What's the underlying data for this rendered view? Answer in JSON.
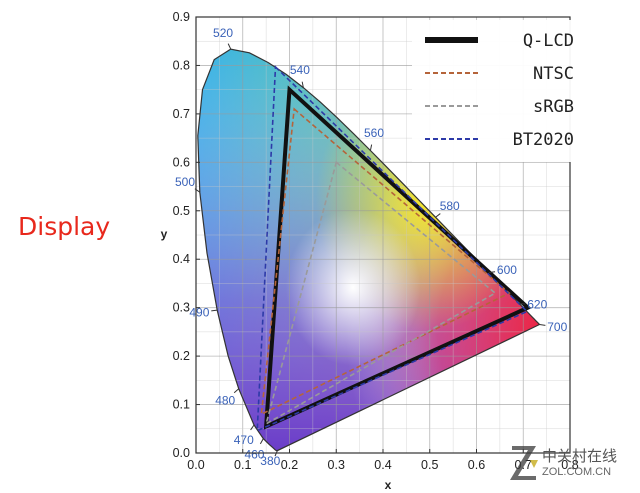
{
  "side_label": "Display",
  "watermark": {
    "cn": "中关村在线",
    "en": "ZOL.COM.CN"
  },
  "chart_data": {
    "type": "line",
    "title": "",
    "xlabel": "x",
    "ylabel": "y",
    "xlim": [
      0,
      0.8
    ],
    "ylim": [
      0,
      0.9
    ],
    "grid": true,
    "legend_position": "top-right",
    "x_ticks": [
      "0.0",
      "0.1",
      "0.2",
      "0.3",
      "0.4",
      "0.5",
      "0.6",
      "0.7",
      "0.8"
    ],
    "y_ticks": [
      "0.0",
      "0.1",
      "0.2",
      "0.3",
      "0.4",
      "0.5",
      "0.6",
      "0.7",
      "0.8",
      "0.9"
    ],
    "spectral_locus": {
      "x": [
        0.1741,
        0.1738,
        0.1733,
        0.1726,
        0.1714,
        0.1689,
        0.1644,
        0.1566,
        0.144,
        0.1241,
        0.0913,
        0.0687,
        0.0454,
        0.0235,
        0.0082,
        0.0039,
        0.0139,
        0.0389,
        0.0743,
        0.1142,
        0.1547,
        0.1929,
        0.2296,
        0.2658,
        0.3016,
        0.3373,
        0.3731,
        0.4087,
        0.4441,
        0.4788,
        0.5125,
        0.5448,
        0.5752,
        0.6029,
        0.627,
        0.6482,
        0.6658,
        0.6801,
        0.6915,
        0.7006,
        0.7079,
        0.714,
        0.719,
        0.723,
        0.726,
        0.7283,
        0.73,
        0.7347
      ],
      "y": [
        0.005,
        0.005,
        0.0048,
        0.0048,
        0.0051,
        0.0069,
        0.0109,
        0.0177,
        0.0297,
        0.0578,
        0.1327,
        0.2007,
        0.295,
        0.4127,
        0.5384,
        0.6548,
        0.7502,
        0.812,
        0.8338,
        0.8262,
        0.8059,
        0.7816,
        0.7543,
        0.7243,
        0.6923,
        0.6589,
        0.6245,
        0.5896,
        0.5547,
        0.5202,
        0.4866,
        0.4544,
        0.4242,
        0.3965,
        0.3725,
        0.3514,
        0.334,
        0.3197,
        0.3083,
        0.2993,
        0.292,
        0.2859,
        0.2809,
        0.277,
        0.274,
        0.2717,
        0.27,
        0.2653
      ]
    },
    "wavelength_labels": [
      {
        "text": "520",
        "x": 0.0743,
        "y": 0.8338
      },
      {
        "text": "540",
        "x": 0.2296,
        "y": 0.7543
      },
      {
        "text": "560",
        "x": 0.3731,
        "y": 0.6245
      },
      {
        "text": "580",
        "x": 0.5125,
        "y": 0.4866
      },
      {
        "text": "600",
        "x": 0.627,
        "y": 0.3725
      },
      {
        "text": "620",
        "x": 0.6915,
        "y": 0.3083
      },
      {
        "text": "700",
        "x": 0.7347,
        "y": 0.2653
      },
      {
        "text": "500",
        "x": 0.0082,
        "y": 0.5384
      },
      {
        "text": "490",
        "x": 0.0454,
        "y": 0.295
      },
      {
        "text": "480",
        "x": 0.0913,
        "y": 0.1327
      },
      {
        "text": "470",
        "x": 0.1241,
        "y": 0.0578
      },
      {
        "text": "460",
        "x": 0.144,
        "y": 0.0297
      },
      {
        "text": "380",
        "x": 0.1741,
        "y": 0.005
      }
    ],
    "series": [
      {
        "name": "Q-LCD",
        "style": "solid",
        "color": "#111111",
        "x": [
          0.2,
          0.71,
          0.15
        ],
        "y": [
          0.75,
          0.3,
          0.055
        ]
      },
      {
        "name": "NTSC",
        "style": "dash",
        "color": "#b5643a",
        "x": [
          0.21,
          0.67,
          0.14
        ],
        "y": [
          0.71,
          0.33,
          0.08
        ]
      },
      {
        "name": "sRGB",
        "style": "dash",
        "color": "#9a9a9a",
        "x": [
          0.3,
          0.64,
          0.15
        ],
        "y": [
          0.6,
          0.33,
          0.06
        ]
      },
      {
        "name": "BT2020",
        "style": "dash",
        "color": "#2d3aa8",
        "x": [
          0.17,
          0.708,
          0.131
        ],
        "y": [
          0.797,
          0.292,
          0.046
        ]
      }
    ]
  }
}
